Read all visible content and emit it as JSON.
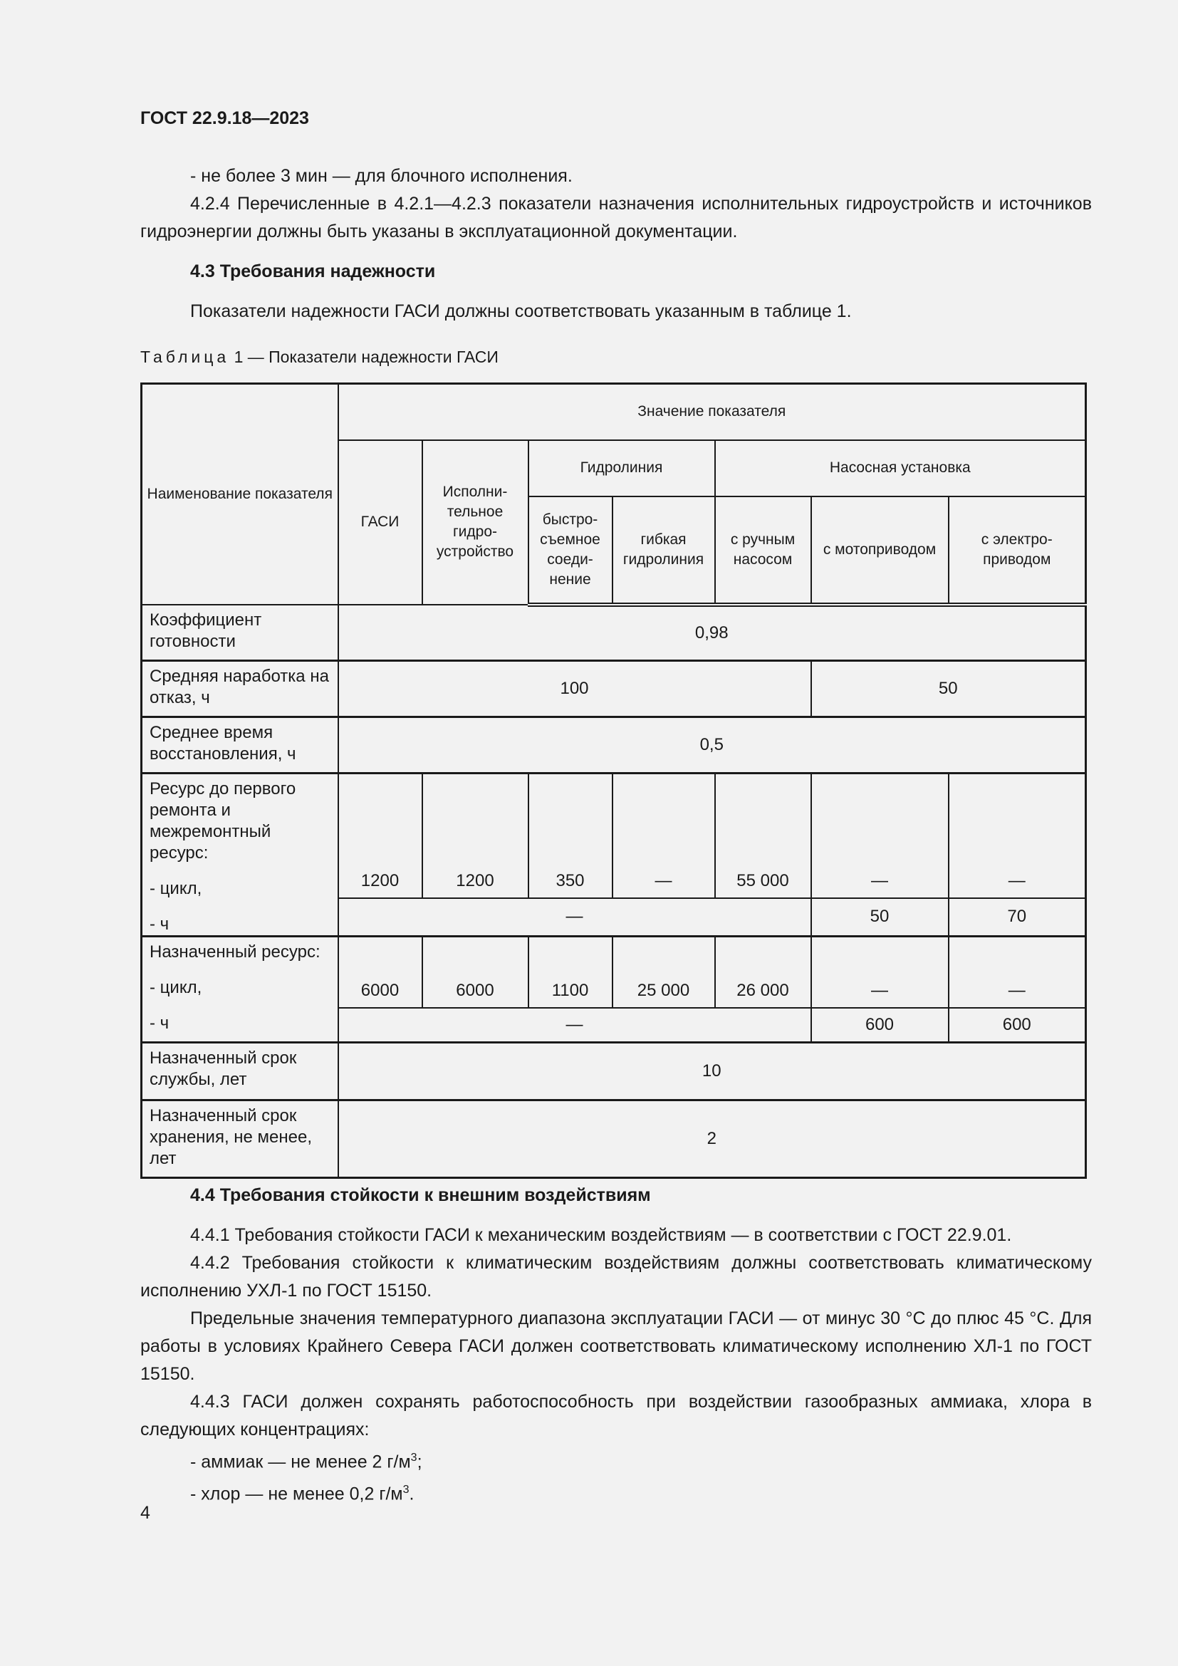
{
  "header": {
    "doc_id": "ГОСТ 22.9.18—2023"
  },
  "top_text": {
    "bullet_1": "-  не более 3 мин — для блочного исполнения.",
    "para_424": "4.2.4  Перечисленные в 4.2.1—4.2.3 показатели назначения исполнительных гидроустройств и источников гидроэнергии должны быть указаны в эксплуатационной документации.",
    "section_43": "4.3  Требования надежности",
    "para_43": "Показатели надежности ГАСИ должны соответствовать указанным в таблице 1."
  },
  "table": {
    "caption_word": "Таблица",
    "caption_rest": " 1 — Показатели надежности ГАСИ",
    "headers": {
      "name": "Наименование показателя",
      "value": "Значение показателя",
      "gasi": "ГАСИ",
      "actuator": "Исполни-тельное гидро-устройство",
      "hydroline": "Гидролиния",
      "pump_unit": "Насосная установка",
      "quick": "быстро-съемное соеди-нение",
      "flexible": "гибкая гидролиния",
      "manual": "с ручным насосом",
      "motor": "с мотоприводом",
      "electric": "с электро-приводом"
    },
    "rows": {
      "readiness": {
        "label": "Коэффициент готовности",
        "value": "0,98"
      },
      "mtbf": {
        "label": "Средняя наработка на отказ, ч",
        "value_a": "100",
        "value_b": "50"
      },
      "restore": {
        "label": "Среднее время восстановления, ч",
        "value": "0,5"
      },
      "resource": {
        "label": "Ресурс до первого ремонта и межремонтный ресурс:",
        "cycle_label": "-  цикл,",
        "hours_label": "-  ч",
        "cycle": [
          "1200",
          "1200",
          "350",
          "—",
          "55 000",
          "—",
          "—"
        ],
        "hours_span": "—",
        "hours": [
          "50",
          "70"
        ]
      },
      "assigned": {
        "label": "Назначенный ресурс:",
        "cycle_label": "-  цикл,",
        "hours_label": "-  ч",
        "cycle": [
          "6000",
          "6000",
          "1100",
          "25 000",
          "26 000",
          "—",
          "—"
        ],
        "hours_span": "—",
        "hours": [
          "600",
          "600"
        ]
      },
      "service_life": {
        "label": "Назначенный срок службы, лет",
        "value": "10"
      },
      "storage": {
        "label": "Назначенный срок хранения, не менее, лет",
        "value": "2"
      }
    }
  },
  "bottom_text": {
    "section_44": "4.4  Требования стойкости к внешним воздействиям",
    "p441": "4.4.1  Требования стойкости ГАСИ к механическим воздействиям — в соответствии с ГОСТ 22.9.01.",
    "p442": "4.4.2  Требования стойкости к климатическим воздействиям должны соответствовать климатическому исполнению УХЛ-1 по ГОСТ 15150.",
    "p_temp": "Предельные значения температурного диапазона эксплуатации ГАСИ — от минус 30 °С до плюс 45 °С. Для работы в условиях Крайнего Севера ГАСИ должен соответствовать климатическому исполнению ХЛ-1 по ГОСТ 15150.",
    "p443": "4.4.3  ГАСИ должен сохранять работоспособность при воздействии газообразных аммиака, хлора в следующих концентрациях:",
    "ammonia": "-  аммиак — не менее 2 г/м",
    "chlorine": "-  хлор — не менее 0,2 г/м",
    "sup": "3"
  },
  "page_number": "4"
}
